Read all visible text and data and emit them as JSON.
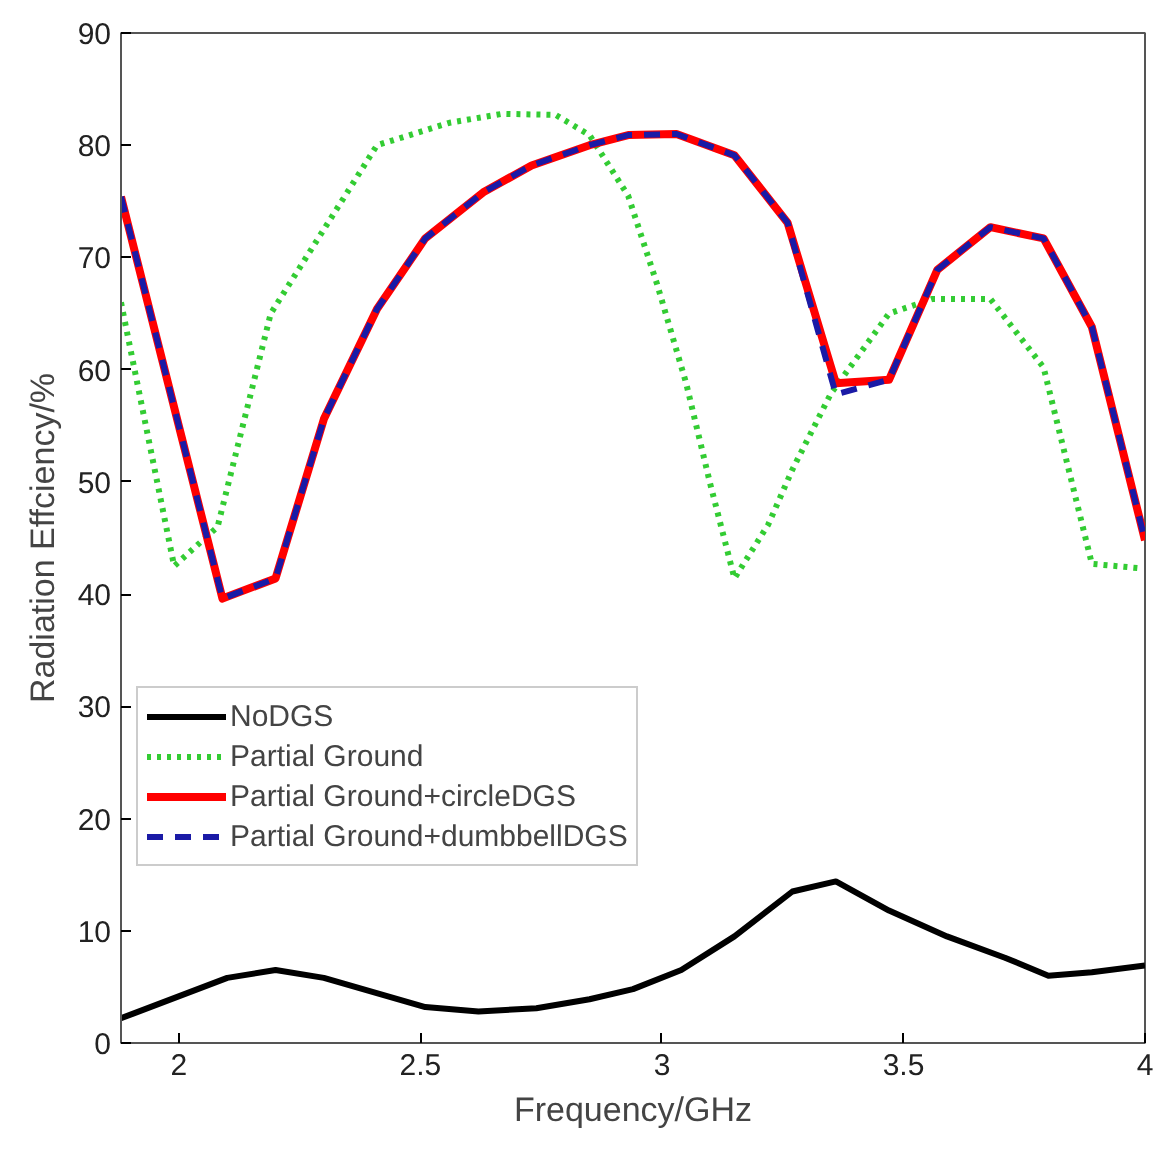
{
  "chart_data": {
    "type": "line",
    "xlabel": "Frequency/GHz",
    "ylabel": "Radiation Effciency/%",
    "xlim": [
      1.88,
      4
    ],
    "xticks": [
      2,
      2.5,
      3,
      3.5,
      4
    ],
    "ylim": [
      0,
      90
    ],
    "yticks": [
      0,
      10,
      20,
      30,
      40,
      50,
      60,
      70,
      80,
      90
    ],
    "grid": false,
    "legend": "bottom left",
    "marker": "none",
    "series": [
      {
        "name": "NoDGS",
        "color": "#000000",
        "line_style": "solid",
        "x": [
          1.88,
          2.1,
          2.2,
          2.3,
          2.51,
          2.62,
          2.74,
          2.85,
          2.94,
          3.04,
          3.15,
          3.27,
          3.36,
          3.47,
          3.59,
          3.71,
          3.8,
          3.89,
          4.0
        ],
        "values": [
          2.2,
          5.8,
          6.5,
          5.8,
          3.2,
          2.8,
          3.1,
          3.9,
          4.8,
          6.5,
          9.5,
          13.5,
          14.4,
          11.8,
          9.5,
          7.6,
          6.0,
          6.3,
          6.9
        ]
      },
      {
        "name": "Partial Ground",
        "color": "#33cc33",
        "line_style": "dotted",
        "x": [
          1.88,
          1.99,
          2.08,
          2.19,
          2.41,
          2.56,
          2.67,
          2.78,
          2.85,
          2.93,
          2.99,
          3.05,
          3.1,
          3.15,
          3.22,
          3.27,
          3.35,
          3.47,
          3.56,
          3.68,
          3.79,
          3.89,
          3.99
        ],
        "values": [
          66,
          42.5,
          46,
          65,
          80,
          82,
          82.8,
          82.7,
          80.9,
          75.5,
          67.6,
          58.8,
          49.8,
          41.4,
          46.2,
          51.1,
          57.9,
          65,
          66.3,
          66.3,
          60.2,
          42.7,
          42.3
        ]
      },
      {
        "name": "Partial Ground+circleDGS",
        "color": "#ff0000",
        "line_style": "solid",
        "x": [
          1.88,
          2.09,
          2.2,
          2.3,
          2.41,
          2.51,
          2.63,
          2.73,
          2.85,
          2.93,
          3.03,
          3.15,
          3.26,
          3.36,
          3.47,
          3.57,
          3.68,
          3.79,
          3.89,
          4.0
        ],
        "values": [
          75.4,
          39.6,
          41.4,
          55.6,
          65.4,
          71.7,
          75.8,
          78.2,
          80,
          80.9,
          81,
          79.1,
          73.1,
          58.8,
          59.1,
          68.9,
          72.7,
          71.7,
          63.8,
          44.8
        ]
      },
      {
        "name": "Partial Ground+dumbbellDGS",
        "color": "#1a1aa6",
        "line_style": "dashed",
        "x": [
          1.88,
          2.09,
          2.2,
          2.3,
          2.41,
          2.51,
          2.63,
          2.73,
          2.85,
          2.93,
          3.03,
          3.15,
          3.26,
          3.36,
          3.47,
          3.57,
          3.68,
          3.79,
          3.89,
          4.0
        ],
        "values": [
          75.4,
          39.6,
          41.4,
          55.6,
          65.4,
          71.7,
          75.8,
          78.2,
          80,
          80.9,
          81,
          79.1,
          73.1,
          57.8,
          59.1,
          68.9,
          72.7,
          71.7,
          63.8,
          44.8
        ]
      }
    ]
  }
}
